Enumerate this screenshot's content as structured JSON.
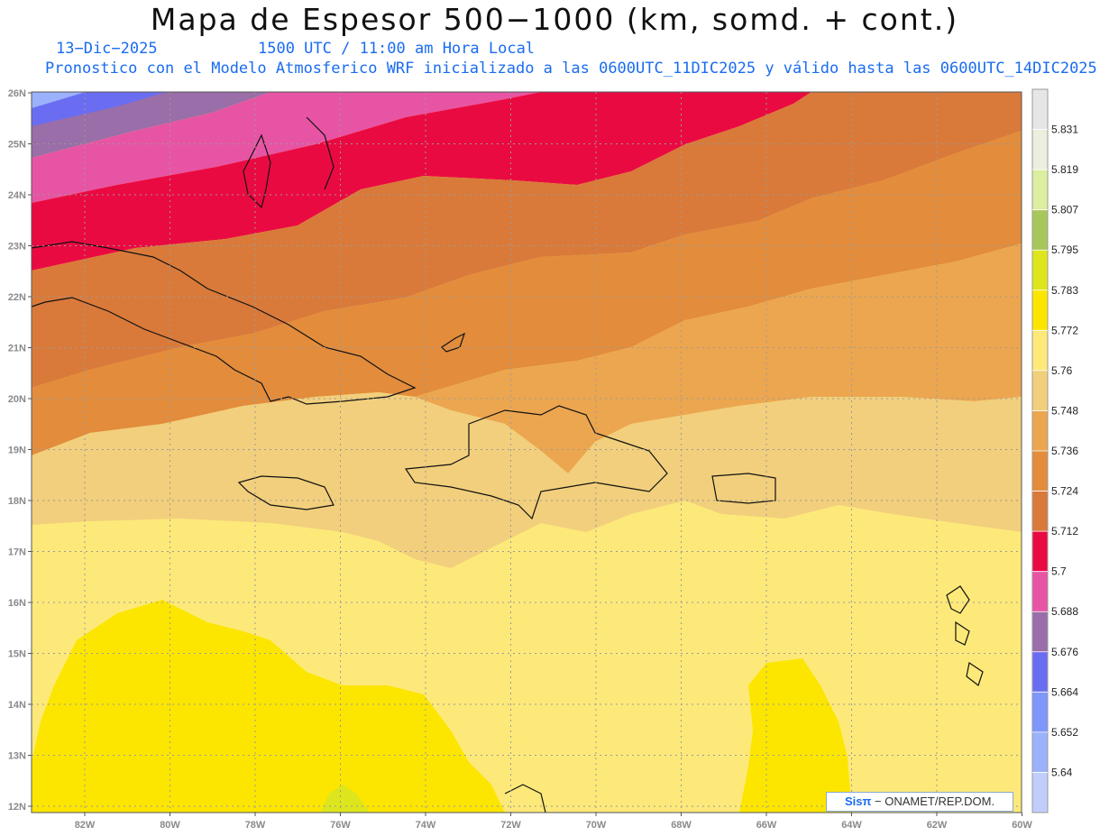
{
  "header": {
    "title": "Mapa de Espesor 500−1000 (km, somd. + cont.)",
    "date": "13−Dic−2025",
    "time": "1500 UTC / 11:00 am Hora Local",
    "description": "Pronostico con el Modelo Atmosferico WRF inicializado a las 0600UTC_11DIC2025 y válido hasta las  0600UTC_14DIC2025"
  },
  "axes": {
    "lon_labels": [
      "82W",
      "80W",
      "78W",
      "76W",
      "74W",
      "72W",
      "70W",
      "68W",
      "66W",
      "64W",
      "62W",
      "60W"
    ],
    "lat_labels": [
      "26N",
      "25N",
      "24N",
      "23N",
      "22N",
      "21N",
      "20N",
      "19N",
      "18N",
      "17N",
      "16N",
      "15N",
      "14N",
      "13N",
      "12N"
    ]
  },
  "colorbar": {
    "levels": [
      "5.64",
      "5.652",
      "5.664",
      "5.676",
      "5.688",
      "5.7",
      "5.712",
      "5.724",
      "5.736",
      "5.748",
      "5.76",
      "5.772",
      "5.783",
      "5.795",
      "5.807",
      "5.819",
      "5.831"
    ],
    "colors": [
      "#c2cdfc",
      "#9cb1fb",
      "#7f96fb",
      "#6a6df2",
      "#9a6ea8",
      "#e854a4",
      "#ea0a42",
      "#d97a3a",
      "#e28c3c",
      "#eca650",
      "#f2cf7c",
      "#fde97a",
      "#fce600",
      "#dde61c",
      "#a6c85a",
      "#dceea0",
      "#eeeede",
      "#e6e6e6"
    ]
  },
  "credit": {
    "sis": "Sisπ",
    "text": " − ONAMET/REP.DOM."
  }
}
